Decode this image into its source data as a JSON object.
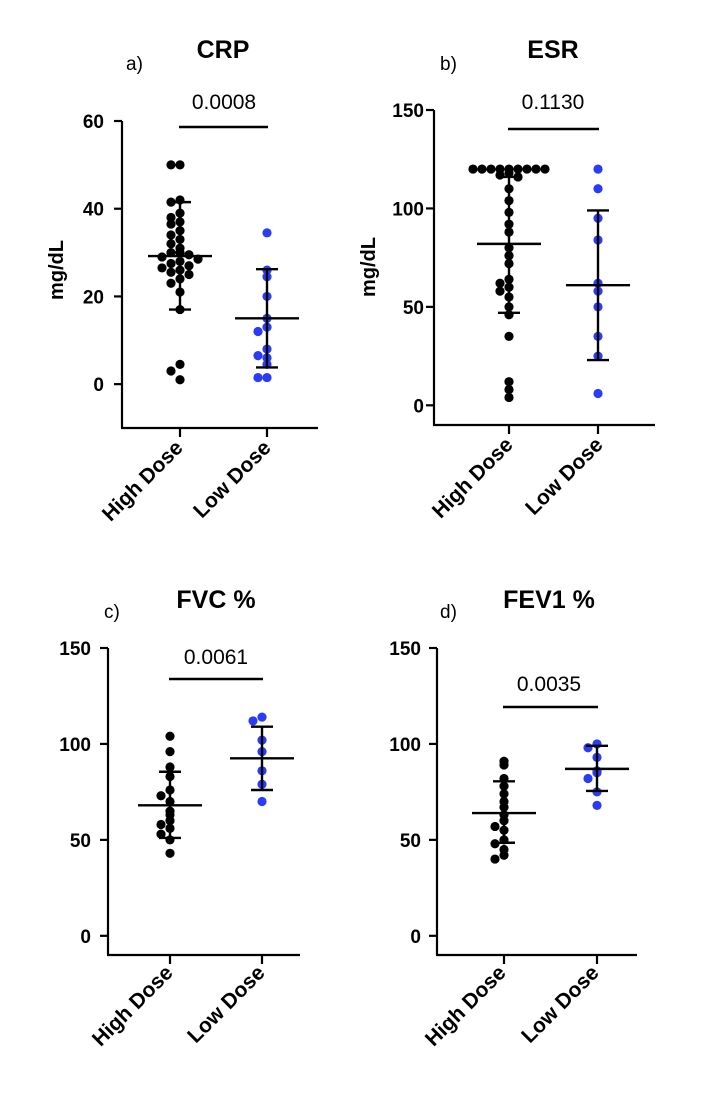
{
  "colors": {
    "high": "#000000",
    "low": "#2a3cf5",
    "axis": "#000000"
  },
  "chart_data": [
    {
      "type": "scatter",
      "panel_letter": "a)",
      "title": "CRP",
      "ylabel": "mg/dL",
      "ylim": [
        -10,
        60
      ],
      "yticks": [
        "0",
        "20",
        "40",
        "60"
      ],
      "categories": [
        "High Dose",
        "Low Dose"
      ],
      "p_value": "0.0008",
      "series": [
        {
          "values": [
            50,
            50,
            42,
            41.5,
            39,
            38,
            37,
            36.5,
            35,
            34,
            33,
            32,
            31,
            30,
            30,
            29.5,
            29,
            28.5,
            28,
            27.5,
            27,
            26.5,
            26,
            25.5,
            25,
            24,
            23,
            21,
            17,
            4.5,
            3,
            1
          ],
          "mean": 29.2,
          "sd_low": 17,
          "sd_high": 41.5
        },
        {
          "values": [
            34.5,
            26,
            24.5,
            20,
            15,
            13,
            12,
            8,
            6.5,
            6,
            4.5,
            1.5,
            1.5
          ],
          "mean": 15,
          "sd_low": 3.8,
          "sd_high": 26.2
        }
      ]
    },
    {
      "type": "scatter",
      "panel_letter": "b)",
      "title": "ESR",
      "ylabel": "mg/dL",
      "ylim": [
        -10,
        150
      ],
      "yticks": [
        "0",
        "50",
        "100",
        "150"
      ],
      "categories": [
        "High Dose",
        "Low Dose"
      ],
      "p_value": "0.1130",
      "series": [
        {
          "values": [
            120,
            120,
            120,
            120,
            120,
            120,
            120,
            120,
            120,
            118,
            117,
            116,
            110,
            104,
            98,
            92,
            88,
            80,
            76,
            72,
            64,
            62,
            60,
            58,
            55,
            50,
            46,
            35,
            12,
            8,
            4
          ],
          "mean": 82,
          "sd_low": 47,
          "sd_high": 116
        },
        {
          "values": [
            120,
            110,
            95,
            84,
            62,
            58,
            50,
            35,
            25,
            6
          ],
          "mean": 61,
          "sd_low": 23,
          "sd_high": 99
        }
      ]
    },
    {
      "type": "scatter",
      "panel_letter": "c)",
      "title": "FVC %",
      "ylabel": "",
      "ylim": [
        -10,
        150
      ],
      "yticks": [
        "0",
        "50",
        "100",
        "150"
      ],
      "categories": [
        "High Dose",
        "Low Dose"
      ],
      "p_value": "0.0061",
      "series": [
        {
          "values": [
            104,
            96,
            88,
            83,
            76,
            73,
            70,
            65,
            63,
            60,
            58,
            56,
            53,
            50,
            43
          ],
          "mean": 68,
          "sd_low": 51,
          "sd_high": 85.5
        },
        {
          "values": [
            114,
            112,
            102,
            96,
            86,
            79,
            70
          ],
          "mean": 92.5,
          "sd_low": 76,
          "sd_high": 109
        }
      ]
    },
    {
      "type": "scatter",
      "panel_letter": "d)",
      "title": "FEV1 %",
      "ylabel": "",
      "ylim": [
        -10,
        150
      ],
      "yticks": [
        "0",
        "50",
        "100",
        "150"
      ],
      "categories": [
        "High Dose",
        "Low Dose"
      ],
      "p_value": "0.0035",
      "series": [
        {
          "values": [
            91,
            89,
            82,
            78,
            74,
            70,
            67,
            63,
            60,
            57,
            55,
            50,
            48,
            45,
            42,
            40
          ],
          "mean": 64,
          "sd_low": 48.5,
          "sd_high": 80.5
        },
        {
          "values": [
            100,
            98,
            93,
            86,
            85,
            82,
            75,
            68
          ],
          "mean": 87,
          "sd_low": 75.5,
          "sd_high": 99
        }
      ]
    }
  ]
}
